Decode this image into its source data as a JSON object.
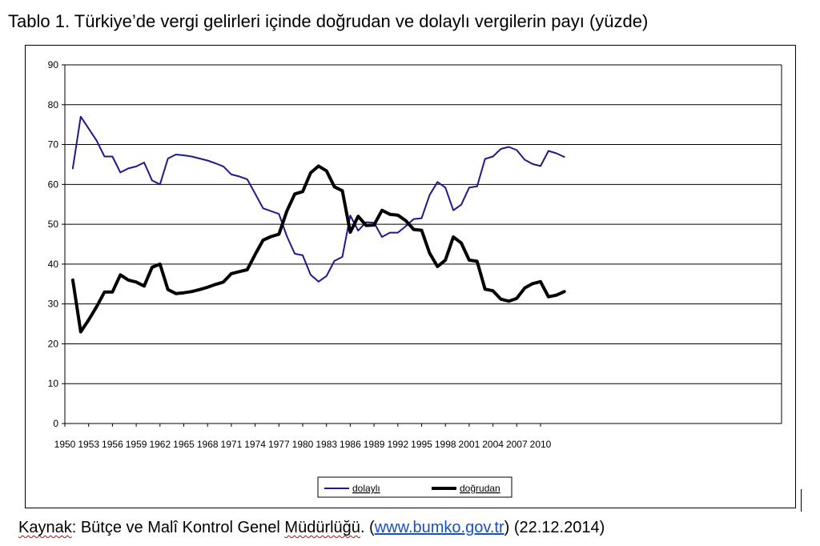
{
  "title": "Tablo 1. Türkiye’de vergi gelirleri içinde doğrudan ve dolaylı vergilerin payı (yüzde)",
  "source": {
    "prefix": "Kaynak",
    "colon": ": ",
    "org_a": "Bütçe ve Malî Kontrol Genel ",
    "org_b": "Müdürlüğü",
    "mid": ". (",
    "link": "www.bumko.gov.tr",
    "suffix": ") (22.12.2014)"
  },
  "colors": {
    "dolayli": "#1f1a8a",
    "dogrudan": "#000000",
    "grid": "#000000"
  },
  "chart_data": {
    "type": "line",
    "x_tick_labels": [
      "1950",
      "1953",
      "1956",
      "1959",
      "1962",
      "1965",
      "1968",
      "1971",
      "1974",
      "1977",
      "1980",
      "1983",
      "1986",
      "1989",
      "1992",
      "1995",
      "1998",
      "2001",
      "2004",
      "2007",
      "2010"
    ],
    "y_ticks": [
      0,
      10,
      20,
      30,
      40,
      50,
      60,
      70,
      80,
      90
    ],
    "ylim": [
      0,
      90
    ],
    "grid": true,
    "legend_position": "bottom-center",
    "x": [
      1951,
      1952,
      1953,
      1954,
      1955,
      1956,
      1957,
      1958,
      1959,
      1960,
      1961,
      1962,
      1963,
      1964,
      1965,
      1966,
      1967,
      1968,
      1969,
      1970,
      1971,
      1972,
      1973,
      1974,
      1975,
      1976,
      1977,
      1978,
      1979,
      1980,
      1981,
      1982,
      1983,
      1984,
      1985,
      1986,
      1987,
      1988,
      1989,
      1990,
      1991,
      1992,
      1993,
      1994,
      1995,
      1996,
      1997,
      1998,
      1999,
      2000,
      2001,
      2002,
      2003,
      2004,
      2005,
      2006,
      2007,
      2008,
      2009,
      2010,
      2011,
      2012,
      2013
    ],
    "series": [
      {
        "name": "dolaylı",
        "values": [
          64,
          77,
          74,
          71,
          67,
          67,
          63,
          64,
          64.5,
          65.5,
          61,
          60,
          66.5,
          67.5,
          67.3,
          67,
          66.5,
          66,
          65.3,
          64.5,
          62.5,
          62,
          61.3,
          57.7,
          54,
          53.3,
          52.6,
          47,
          42.6,
          42.2,
          37.3,
          35.6,
          37,
          40.8,
          41.8,
          52.2,
          48.4,
          50.5,
          50.4,
          46.8,
          47.9,
          47.9,
          49.5,
          51.3,
          51.5,
          57.3,
          60.6,
          59.2,
          53.5,
          54.9,
          59.2,
          59.5,
          66.4,
          67,
          68.9,
          69.4,
          68.6,
          66.2,
          65.1,
          64.6,
          68.4,
          67.8,
          66.9
        ]
      },
      {
        "name": "doğrudan",
        "values": [
          36,
          23,
          26,
          29.3,
          33,
          33,
          37.3,
          36,
          35.5,
          34.5,
          39.2,
          40,
          33.6,
          32.6,
          32.8,
          33.1,
          33.6,
          34.2,
          34.9,
          35.5,
          37.6,
          38.1,
          38.6,
          42.4,
          46,
          46.9,
          47.5,
          53.3,
          57.6,
          58.2,
          62.9,
          64.6,
          63.4,
          59.4,
          58.4,
          48,
          52,
          49.7,
          49.8,
          53.5,
          52.5,
          52.3,
          50.9,
          48.7,
          48.5,
          42.8,
          39.4,
          41,
          46.8,
          45.3,
          41,
          40.7,
          33.7,
          33.3,
          31.2,
          30.7,
          31.4,
          34,
          35.1,
          35.6,
          31.8,
          32.2,
          33.1
        ]
      }
    ]
  }
}
